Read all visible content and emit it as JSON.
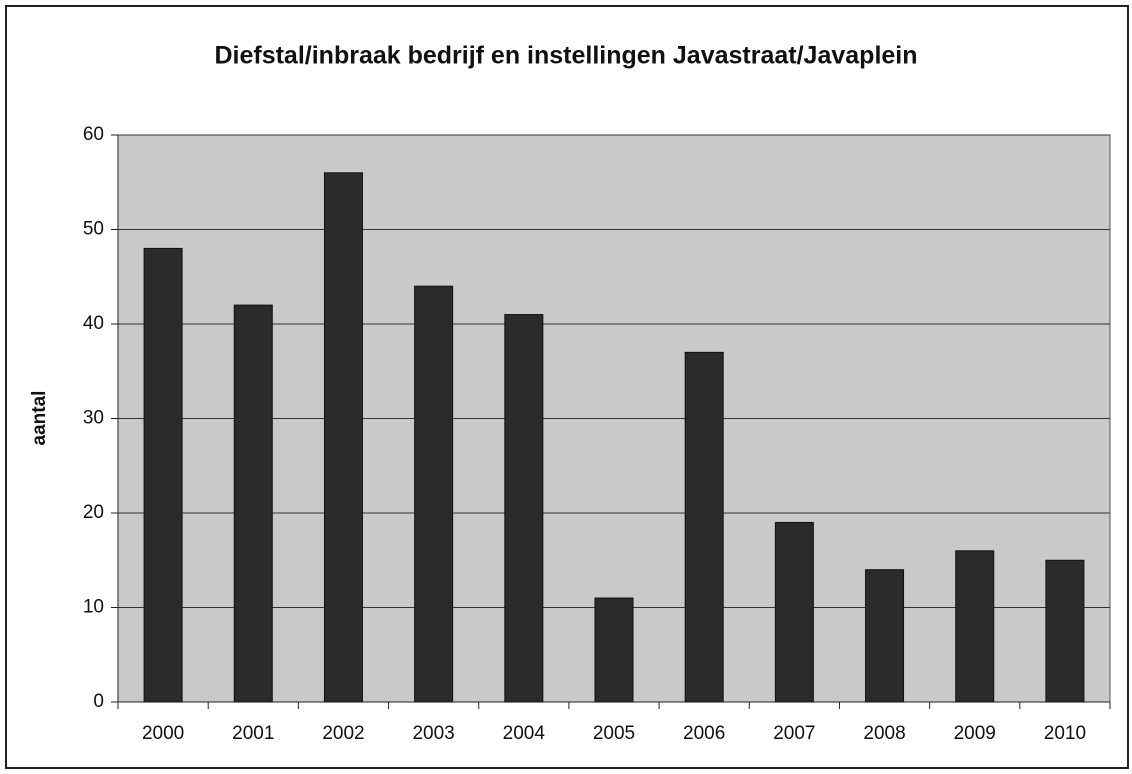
{
  "chart_data": {
    "type": "bar",
    "title": "Diefstal/inbraak bedrijf en instellingen Javastraat/Javaplein",
    "y_label": "aantal",
    "categories": [
      "2000",
      "2001",
      "2002",
      "2003",
      "2004",
      "2005",
      "2006",
      "2007",
      "2008",
      "2009",
      "2010"
    ],
    "values": [
      48,
      42,
      56,
      44,
      41,
      11,
      37,
      19,
      14,
      16,
      15
    ],
    "color": "#2b2b2b",
    "ylim": [
      0,
      60
    ],
    "yticks": [
      0,
      10,
      20,
      30,
      40,
      50,
      60
    ],
    "grid": true
  }
}
